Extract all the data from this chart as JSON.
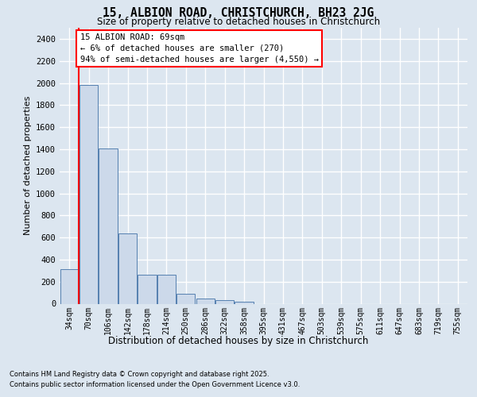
{
  "title_line1": "15, ALBION ROAD, CHRISTCHURCH, BH23 2JG",
  "title_line2": "Size of property relative to detached houses in Christchurch",
  "xlabel": "Distribution of detached houses by size in Christchurch",
  "ylabel": "Number of detached properties",
  "bar_color": "#ccd9ea",
  "bar_edge_color": "#5580b0",
  "categories": [
    "34sqm",
    "70sqm",
    "106sqm",
    "142sqm",
    "178sqm",
    "214sqm",
    "250sqm",
    "286sqm",
    "322sqm",
    "358sqm",
    "395sqm",
    "431sqm",
    "467sqm",
    "503sqm",
    "539sqm",
    "575sqm",
    "611sqm",
    "647sqm",
    "683sqm",
    "719sqm",
    "755sqm"
  ],
  "values": [
    310,
    1980,
    1410,
    640,
    260,
    260,
    90,
    50,
    30,
    20,
    0,
    0,
    0,
    0,
    0,
    0,
    0,
    0,
    0,
    0,
    0
  ],
  "ylim": [
    0,
    2500
  ],
  "yticks": [
    0,
    200,
    400,
    600,
    800,
    1000,
    1200,
    1400,
    1600,
    1800,
    2000,
    2200,
    2400
  ],
  "annotation_title": "15 ALBION ROAD: 69sqm",
  "annotation_line1": "← 6% of detached houses are smaller (270)",
  "annotation_line2": "94% of semi-detached houses are larger (4,550) →",
  "vline_color": "red",
  "background_color": "#dce6f0",
  "grid_color": "white",
  "footer_line1": "Contains HM Land Registry data © Crown copyright and database right 2025.",
  "footer_line2": "Contains public sector information licensed under the Open Government Licence v3.0."
}
